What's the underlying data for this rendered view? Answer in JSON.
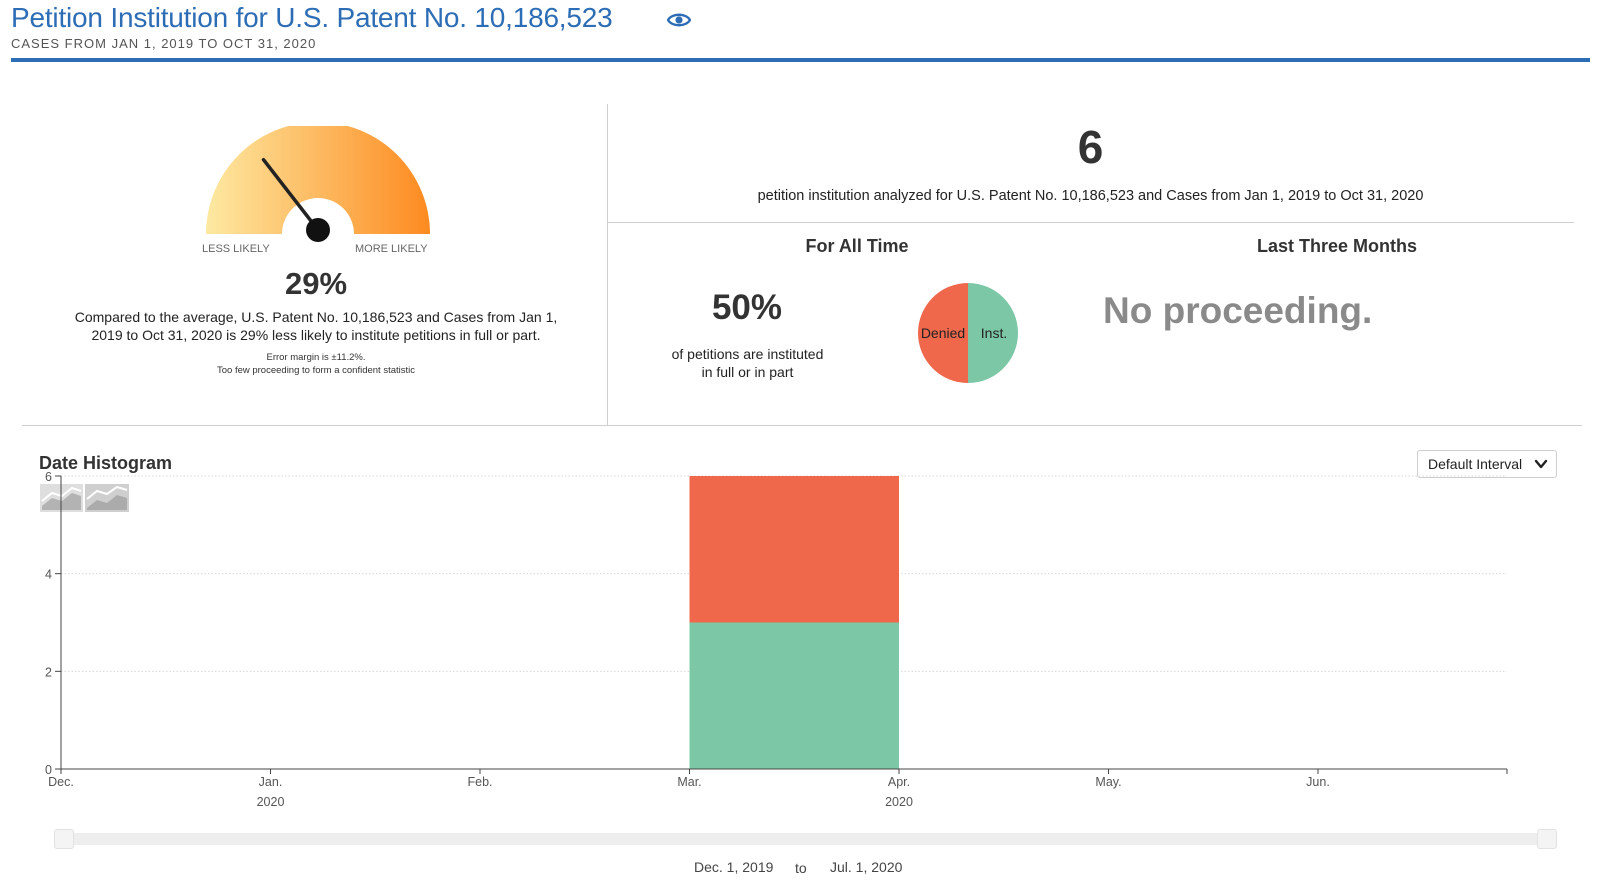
{
  "header": {
    "title": "Petition Institution for U.S. Patent No. 10,186,523",
    "subtitle": "CASES FROM JAN 1, 2019 TO OCT 31, 2020",
    "title_color": "#2d6db5"
  },
  "gauge": {
    "less_label": "LESS LIKELY",
    "more_label": "MORE LIKELY",
    "percent": "29%",
    "needle_level": 0.29,
    "description": "Compared to the average, U.S. Patent No. 10,186,523 and Cases from Jan 1, 2019 to Oct 31, 2020 is 29% less likely to institute petitions in full or part.",
    "error_margin": "Error margin is ±11.2%.",
    "note": "Too few proceeding to form a confident statistic",
    "gradient_start": "#fde9a2",
    "gradient_end": "#fd8a20"
  },
  "summary": {
    "count": "6",
    "description": "petition institution analyzed for U.S. Patent No. 10,186,523 and Cases from Jan 1, 2019 to Oct 31, 2020"
  },
  "all_time": {
    "heading": "For All Time",
    "percent": "50%",
    "description": "of petitions are instituted in full or in part",
    "pie": {
      "denied_label": "Denied",
      "instituted_label": "Inst.",
      "denied_fraction": 0.5,
      "instituted_fraction": 0.5,
      "denied_color": "#ef684c",
      "instituted_color": "#7cc7a6"
    }
  },
  "last_three_months": {
    "heading": "Last Three Months",
    "message": "No proceeding."
  },
  "histogram": {
    "title": "Date Histogram",
    "interval_select": "Default Interval",
    "range_from": "Dec. 1, 2019",
    "range_to_word": "to",
    "range_to": "Jul. 1, 2020"
  },
  "chart_data": {
    "type": "bar",
    "stacked": true,
    "x_ticks": [
      "Dec.",
      "Jan.",
      "Feb.",
      "Mar.",
      "Apr.",
      "May.",
      "Jun."
    ],
    "x_year_labels": [
      {
        "tick": "Jan.",
        "year": "2020"
      },
      {
        "tick": "Apr.",
        "year": "2020"
      }
    ],
    "ylim": [
      0,
      6
    ],
    "y_ticks": [
      0,
      2,
      4,
      6
    ],
    "grid": true,
    "bars": [
      {
        "start": "Mar.",
        "end": "Apr.",
        "segments": [
          {
            "series": "Instituted",
            "value": 3,
            "color": "#7cc7a6"
          },
          {
            "series": "Denied",
            "value": 3,
            "color": "#ef684c"
          }
        ]
      }
    ]
  }
}
